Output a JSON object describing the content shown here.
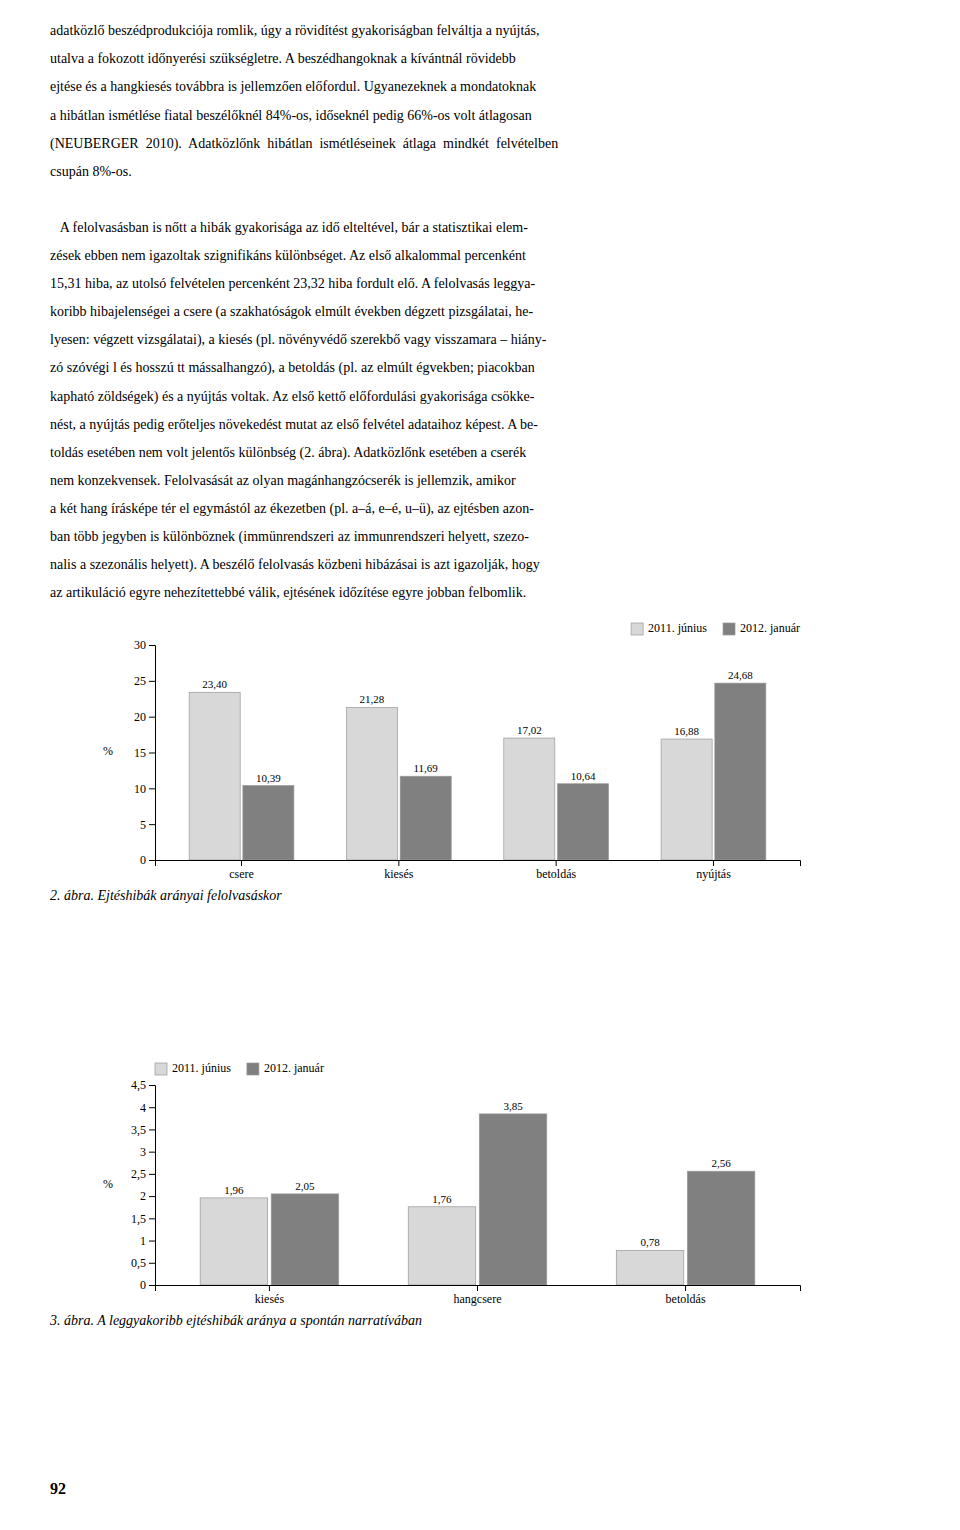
{
  "text_paragraphs": [
    [
      "adatközlő beszédprodukciója romlik, úgy a rövidítést gyakoriságban felváltja a nyújtás,",
      "utalva a fokozott időnyerési szükségletre. A beszédhangoknak a kívántnál rövidebb",
      "ejtése és a hangkiesés továbbra is jellemzően előfordul. Ugyanezeknek a mondatoknak",
      "a hibátlan ismétlése fiatal beszélőknél 84%-os, időseknél pedig 66%-os volt átlagosan",
      "(NEUBERGER  2010).  Adatközlőnk  hibátlan  ismétléseinek  átlaga  mindkét  felvételben",
      "csupán 8%-os."
    ],
    [
      "   A felolvasásban is nőtt a hibák gyakorisága az idő elteltével, bár a statisztikai elem-",
      "zések ebben nem igazoltak szignifikáns különbséget. Az első alkalommal percenként",
      "15,31 hiba, az utolsó felvételen percenként 23,32 hiba fordult elő. A felolvasás leggya-",
      "koribb hibajelenségei a csere (a szakhatóságok elmúlt években dégzett pizsgálatai, he-",
      "lyesen: végzett vizsgálatai), a kiesés (pl. növényvédő szerekbő vagy visszamara – hiány-",
      "zó szóvégi l és hosszú tt mássalhangzó), a betoldás (pl. az elmúlt égvekben; piacokban",
      "kapható zöldségek) és a nyújtás voltak. Az első kettő előfordulási gyakorisága csökke-",
      "nést, a nyújtás pedig erőteljes növekedést mutat az első felvétel adataihoz képest. A be-",
      "toldás esetében nem volt jelentős különbség (2. ábra). Adatközlőnk esetében a cserék",
      "nem konzekvensek. Felolvasását az olyan magánhangzócserék is jellemzik, amikor",
      "a két hang írásképe tér el egymástól az ékezetben (pl. a–á, e–é, u–ü), az ejtésben azon-",
      "ban több jegyben is különböznek (immünrendszeri az immunrendszeri helyett, szezo-",
      "nalis a szezonális helyett). A beszélő felolvasás közbeni hibázásai is azt igazolják, hogy",
      "az artikuláció egyre nehezítettebbé válik, ejtésének időzítése egyre jobban felbomlik."
    ]
  ],
  "page_number": "92",
  "chart_data": [
    {
      "type": "bar",
      "title": "2. ábra. Ejtéshibák arányai felolvasáskor",
      "y_label": "%",
      "categories": [
        "csere",
        "kiesés",
        "betoldás",
        "nyújtás"
      ],
      "series": [
        {
          "name": "2011. június",
          "color": "#d8d8d8",
          "values": [
            23.4,
            21.28,
            17.02,
            16.88
          ],
          "value_labels": [
            "23,40",
            "21,28",
            "17,02",
            "16,88"
          ]
        },
        {
          "name": "2012. január",
          "color": "#808080",
          "values": [
            10.39,
            11.69,
            10.64,
            24.68
          ],
          "value_labels": [
            "10,39",
            "11,69",
            "10,64",
            "24,68"
          ]
        }
      ],
      "ylim": [
        0,
        30
      ],
      "yticks": [
        0,
        5,
        10,
        15,
        20,
        25,
        30
      ],
      "data_labels": true,
      "grid": false,
      "legend": "upper right"
    },
    {
      "type": "bar",
      "title": "3. ábra. A leggyakoribb ejtéshibák aránya a spontán narratívában",
      "y_label": "%",
      "categories": [
        "kiesés",
        "hangcsere",
        "betoldás"
      ],
      "series": [
        {
          "name": "2011. június",
          "color": "#d8d8d8",
          "values": [
            1.96,
            1.76,
            0.78
          ],
          "value_labels": [
            "1,96",
            "1,76",
            "0,78"
          ]
        },
        {
          "name": "2012. január",
          "color": "#808080",
          "values": [
            2.05,
            3.85,
            2.56
          ],
          "value_labels": [
            "2,05",
            "3,85",
            "2,56"
          ]
        }
      ],
      "ylim": [
        0,
        4.5
      ],
      "yticks": [
        0,
        {
          "value": 0.5,
          "label": "0,5"
        },
        1,
        {
          "value": 1.5,
          "label": "1,5"
        },
        2,
        {
          "value": 2.5,
          "label": "2,5"
        },
        3,
        {
          "value": 3.5,
          "label": "3,5"
        },
        4,
        {
          "value": 4.5,
          "label": "4,5"
        }
      ],
      "data_labels": true,
      "grid": false,
      "legend": "upper left"
    }
  ]
}
